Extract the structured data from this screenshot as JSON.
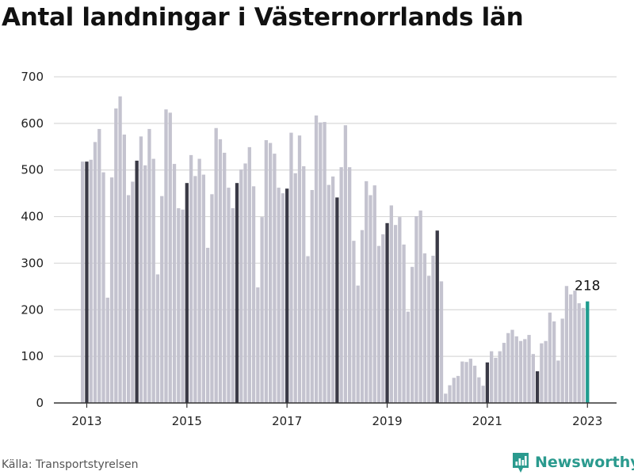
{
  "title": "Antal landningar i Västernorrlands län",
  "source": "Källa: Transportstyrelsen",
  "brand": {
    "name": "Newsworthy",
    "icon": "newsworthy-logo-icon"
  },
  "colors": {
    "bar": "#c4c3cf",
    "january": "#3a3a46",
    "latest": "#1f9c8f",
    "grid": "#d9d9d9",
    "axis": "#333333"
  },
  "chart_data": {
    "type": "bar",
    "title": "Antal landningar i Västernorrlands län",
    "xlabel": "",
    "ylabel": "",
    "ylim": [
      0,
      700
    ],
    "yticks": [
      0,
      100,
      200,
      300,
      400,
      500,
      600,
      700
    ],
    "xticks": [
      "2013",
      "2015",
      "2017",
      "2019",
      "2021",
      "2023"
    ],
    "grid": true,
    "start": "2012-12",
    "highlight": "January",
    "annotation": {
      "label": "218",
      "value": 218,
      "x": "2023-01"
    },
    "values": [
      518,
      518,
      522,
      560,
      588,
      495,
      226,
      484,
      632,
      658,
      576,
      446,
      475,
      520,
      572,
      510,
      588,
      524,
      276,
      444,
      630,
      623,
      513,
      418,
      415,
      472,
      532,
      487,
      524,
      490,
      333,
      448,
      590,
      566,
      537,
      462,
      418,
      472,
      501,
      514,
      549,
      465,
      248,
      399,
      564,
      558,
      535,
      462,
      450,
      460,
      580,
      493,
      574,
      508,
      315,
      457,
      617,
      602,
      603,
      468,
      486,
      441,
      506,
      596,
      506,
      348,
      252,
      371,
      476,
      446,
      467,
      337,
      362,
      386,
      424,
      382,
      399,
      340,
      196,
      292,
      401,
      413,
      321,
      273,
      316,
      370,
      261,
      20,
      38,
      54,
      58,
      89,
      88,
      95,
      80,
      55,
      37,
      87,
      111,
      97,
      111,
      129,
      150,
      157,
      143,
      133,
      137,
      146,
      105,
      68,
      128,
      133,
      194,
      175,
      91,
      181,
      251,
      233,
      241,
      214,
      204,
      218
    ]
  }
}
